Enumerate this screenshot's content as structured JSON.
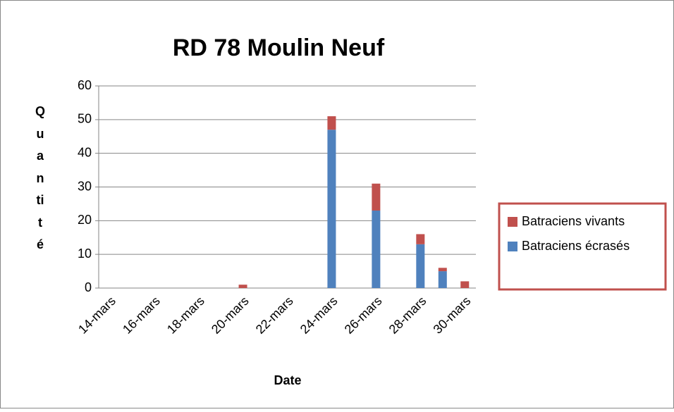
{
  "chart_data": {
    "type": "stacked_bar",
    "title": "RD 78 Moulin Neuf",
    "x_label": "Date",
    "y_label": "Quantité",
    "categories": [
      "14-mars",
      null,
      "16-mars",
      null,
      "18-mars",
      null,
      "20-mars",
      null,
      "22-mars",
      null,
      "24-mars",
      null,
      "26-mars",
      null,
      "28-mars",
      null,
      "30-mars"
    ],
    "series": [
      {
        "name": "Batraciens écrasés",
        "color": "#4f81bd",
        "values": [
          0,
          0,
          0,
          0,
          0,
          0,
          0,
          0,
          0,
          0,
          47,
          0,
          23,
          0,
          13,
          5,
          0
        ]
      },
      {
        "name": "Batraciens vivants",
        "color": "#c0504d",
        "values": [
          0,
          0,
          0,
          0,
          0,
          0,
          1,
          0,
          0,
          0,
          4,
          0,
          8,
          0,
          3,
          1,
          2
        ]
      }
    ],
    "ylim": [
      0,
      60
    ],
    "yticks": [
      0,
      10,
      20,
      30,
      40,
      50,
      60
    ],
    "grid": true,
    "legend": "right"
  }
}
